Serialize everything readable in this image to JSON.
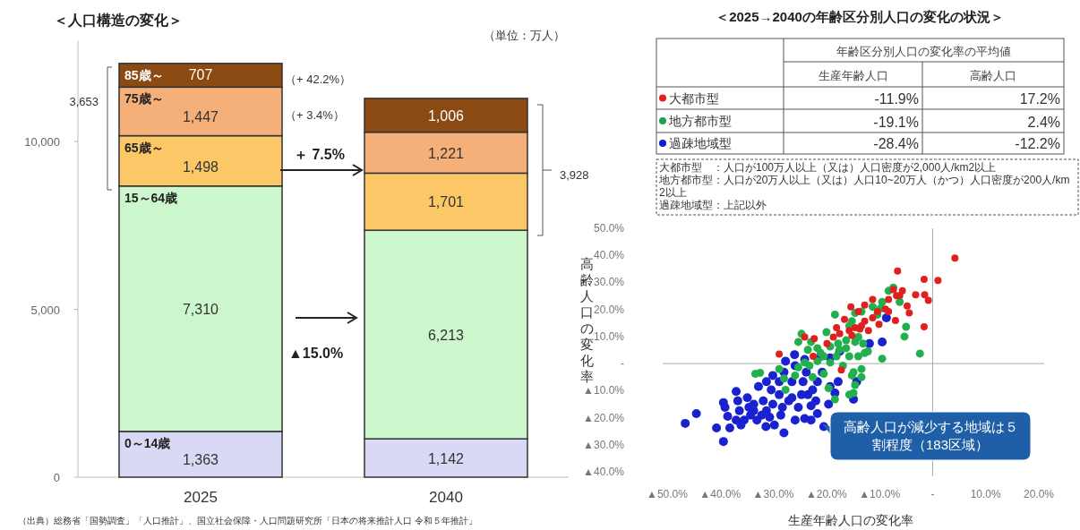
{
  "chart_data": [
    {
      "type": "bar",
      "stacked": true,
      "title": "＜人口構造の変化＞",
      "categories": [
        "2025",
        "2040"
      ],
      "series": [
        {
          "name": "0～14歳",
          "color": "#d9d9f5",
          "values": [
            1363,
            1142
          ],
          "value_labels": [
            "1,363",
            "1,142"
          ]
        },
        {
          "name": "15～64歳",
          "color": "#ccf7cc",
          "values": [
            7310,
            6213
          ],
          "value_labels": [
            "7,310",
            "6,213"
          ]
        },
        {
          "name": "65歳～",
          "color": "#fcc867",
          "values": [
            1498,
            1701
          ],
          "value_labels": [
            "1,498",
            "1,701"
          ]
        },
        {
          "name": "75歳～",
          "color": "#f5b07a",
          "values": [
            1447,
            1221
          ],
          "value_labels": [
            "1,447",
            "1,221"
          ]
        },
        {
          "name": "85歳～",
          "color": "#8b4a12",
          "values": [
            707,
            1006
          ],
          "value_labels": [
            "707",
            "1,006"
          ]
        }
      ],
      "ylim": [
        0,
        13000
      ],
      "yticks": [
        0,
        {
          "value": 5000,
          "label": "5,000"
        },
        {
          "value": 10000,
          "label": "10,000"
        }
      ],
      "annotations": [
        "（単位：万人）",
        "（+ 42.2%）",
        "（+ 3.4%）",
        "＋ 7.5%",
        "▲15.0%",
        "3,653",
        "3,928",
        "（出典）総務省「国勢調査」「人口推計」、国立社会保障・人口問題研究所「日本の将来推計人口 令和５年推計」"
      ]
    },
    {
      "type": "other",
      "title": "＜2025→2040の年齢区分別人口の変化の状況＞",
      "legend_title": "年齢区分別人口の変化率の平均値",
      "categories": [
        "大都市型",
        "地方都市型",
        "過疎地域型"
      ],
      "colors": [
        "#e02020",
        "#20a050",
        "#1020c0"
      ],
      "series": [
        {
          "name": "生産年齢人口",
          "values": [
            -11.9,
            -19.1,
            -28.4
          ],
          "value_labels": [
            "-11.9%",
            "-19.1%",
            "-28.4%"
          ]
        },
        {
          "name": "高齢人口",
          "values": [
            17.2,
            2.4,
            -12.2
          ],
          "value_labels": [
            "17.2%",
            "2.4%",
            "-12.2%"
          ]
        }
      ],
      "annotations": [
        "大都市型　：人口が100万人以上（又は）人口密度が2,000人/km2以上",
        "地方都市型：人口が20万人以上（又は）人口10~20万人（かつ）人口密度が200人/km2以上",
        "過疎地域型：上記以外"
      ]
    },
    {
      "type": "scatter",
      "marker": "circle",
      "xlabel": "生産年齢人口の変化率",
      "ylabel": "高齢人口の変化率",
      "xlim": [
        -50,
        20
      ],
      "ylim": [
        -40,
        50
      ],
      "xticks": [
        {
          "value": -50,
          "label": "▲50.0%"
        },
        {
          "value": -40,
          "label": "▲40.0%"
        },
        {
          "value": -30,
          "label": "▲30.0%"
        },
        {
          "value": -20,
          "label": "▲20.0%"
        },
        {
          "value": -10,
          "label": "▲10.0%"
        },
        {
          "value": 0,
          "label": "-"
        },
        {
          "value": 10,
          "label": "10.0%"
        },
        {
          "value": 20,
          "label": "20.0%"
        }
      ],
      "yticks": [
        {
          "value": -40,
          "label": "▲40.0%"
        },
        {
          "value": -30,
          "label": "▲30.0%"
        },
        {
          "value": -20,
          "label": "▲20.0%"
        },
        {
          "value": -10,
          "label": "▲10.0%"
        },
        {
          "value": 0,
          "label": "-"
        },
        {
          "value": 10,
          "label": "10.0%"
        },
        {
          "value": 20,
          "label": "20.0%"
        },
        {
          "value": 30,
          "label": "30.0%"
        },
        {
          "value": 40,
          "label": "40.0%"
        },
        {
          "value": 50,
          "label": "50.0%"
        }
      ],
      "annotations": [
        "高齢人口が減少する地域は５割程度（183区域）"
      ],
      "series": [
        {
          "color": "#1a22d0",
          "x": [
            -46.6,
            -44.5,
            -40.7,
            -39.4,
            -38.2,
            -39.4,
            -39.1,
            -38.6,
            -37.0,
            -36.7,
            -36.4,
            -36.1,
            -34.9,
            -34.6,
            -34.3,
            -33.7,
            -33.1,
            -32.8,
            -31.9,
            -31.3,
            -31.4,
            -30.4,
            -30.1,
            -29.8,
            -28.9,
            -28.6,
            -28.0,
            -28.0,
            -27.7,
            -28.9,
            -27.1,
            -26.5,
            -26.0,
            -25.9,
            -25.3,
            -24.7,
            -24.4,
            -23.8,
            -24.1,
            -22.9,
            -22.6,
            -22.0,
            -21.7,
            -21.1,
            -20.8,
            -20.5,
            -19.6,
            -19.3,
            -18.4,
            -17.8,
            -17.5,
            -14.9,
            -14.3,
            -11.9,
            -9.5,
            -8.7,
            -21.7,
            -23.5,
            -31.3,
            -30.1,
            -25.9,
            -33.7,
            -35.5,
            -32.2,
            -28.3,
            -26.5,
            -30.7,
            -22.9,
            -19.3,
            -24.1,
            -37.0
          ],
          "values": [
            -22.1,
            -18.5,
            -23.8,
            -28.8,
            -23.8,
            -14.4,
            -16.2,
            -19.5,
            -10.3,
            -13.8,
            -17.4,
            -22.7,
            -12.6,
            -16.2,
            -19.1,
            -15.0,
            -20.9,
            -8.5,
            -13.8,
            -17.4,
            -23.3,
            -9.7,
            -15.0,
            -22.7,
            -11.5,
            -19.1,
            -25.6,
            -3.2,
            0.9,
            -6.7,
            -13.8,
            -6.7,
            3.3,
            -20.9,
            -16.2,
            -11.5,
            -6.7,
            -3.2,
            -20.3,
            -20.9,
            -9.7,
            -13.8,
            -18.5,
            2.7,
            -3.2,
            -23.3,
            -15.0,
            -8.5,
            -10.9,
            -6.7,
            4.5,
            -13.2,
            -6.7,
            7.4,
            8.0,
            16.9,
            -6.7,
            -11.5,
            -6.7,
            -4.4,
            -0.8,
            -17.4,
            -20.9,
            -19.1,
            -16.2,
            -12.6,
            -19.8,
            -15.6,
            2.1,
            1.5,
            -20.9
          ]
        },
        {
          "color": "#22b04e",
          "x": [
            -7.4,
            -8.3,
            -9.5,
            -9.8,
            -6.2,
            -10.4,
            -13.4,
            -14.6,
            -18.4,
            -5.0,
            -5.3,
            -2.4,
            -9.5,
            -15.2,
            -24.7,
            -20.0,
            -16.3,
            -14.6,
            -13.1,
            -12.8,
            -14.0,
            -15.7,
            -17.5,
            -19.3,
            -21.7,
            -23.5,
            -24.1,
            -21.7,
            -19.3,
            -16.9,
            -15.2,
            -13.4,
            -14.9,
            -14.6,
            -15.7,
            -14.9,
            -18.4,
            -19.6,
            -20.5,
            -23.2,
            -25.3,
            -28.0,
            -27.7,
            -33.4,
            -32.5,
            -28.9,
            -25.9,
            -22.6,
            -21.1,
            -18.1,
            -16.3,
            -17.8,
            -25.3,
            -22.9,
            -20.5,
            -13.4,
            -12.2,
            -14.0,
            -15.7,
            -11.3
          ],
          "values": [
            28.1,
            26.9,
            22.8,
            20.4,
            22.8,
            18.1,
            19.2,
            18.7,
            18.1,
            13.6,
            10.0,
            3.7,
            1.8,
            15.7,
            11.0,
            11.6,
            8.6,
            8.0,
            7.4,
            3.9,
            2.7,
            2.7,
            5.1,
            6.3,
            5.7,
            5.1,
            0.4,
            0.9,
            0.4,
            -0.8,
            -4.4,
            -5.0,
            -3.2,
            -7.9,
            -11.5,
            -10.9,
            -13.2,
            -9.1,
            -3.8,
            -0.8,
            -1.4,
            -5.5,
            -9.7,
            -3.8,
            -3.4,
            -2.0,
            -4.4,
            -5.0,
            3.9,
            2.7,
            5.7,
            7.4,
            8.0,
            8.0,
            2.7,
            -2.0,
            4.5,
            9.8,
            13.9,
            21.0
          ]
        },
        {
          "color": "#e0201e",
          "x": [
            4.2,
            -6.6,
            -1.6,
            1.0,
            -3.2,
            -1.5,
            -0.8,
            -5.7,
            -7.4,
            -6.8,
            -8.3,
            -11.3,
            -4.8,
            -4.4,
            -8.9,
            -12.8,
            -15.4,
            -14.0,
            -7.0,
            -1.6,
            -11.3,
            -12.8,
            -16.6,
            -13.4,
            -14.6,
            -15.7,
            -12.1,
            -17.5,
            -18.7,
            -15.2,
            -22.3,
            -24.1,
            -22.5,
            -28.9,
            -17.2,
            -13.7,
            -10.4,
            -8.3,
            -6.2,
            -10.1,
            -19.9,
            -18.1
          ],
          "values": [
            39.0,
            34.2,
            31.1,
            30.7,
            25.4,
            25.4,
            23.4,
            26.9,
            27.3,
            25.1,
            23.7,
            23.7,
            21.3,
            18.7,
            20.1,
            21.6,
            21.0,
            19.2,
            15.9,
            13.6,
            16.9,
            15.7,
            16.3,
            13.9,
            13.3,
            12.2,
            12.2,
            11.0,
            9.8,
            10.4,
            9.2,
            9.8,
            2.7,
            3.5,
            -2.4,
            12.8,
            19.2,
            19.2,
            25.1,
            14.5,
            7.4,
            13.3
          ]
        }
      ]
    }
  ]
}
